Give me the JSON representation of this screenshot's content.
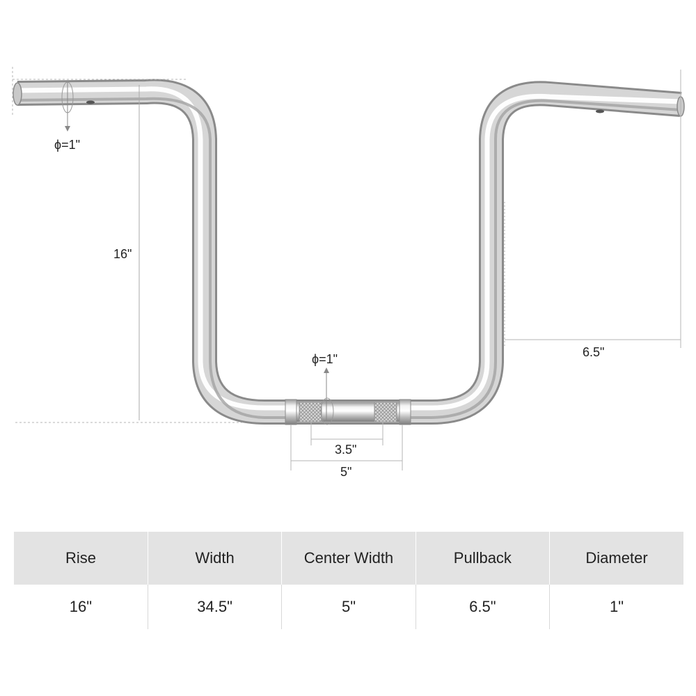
{
  "diagram": {
    "labels": {
      "grip_diameter": "ϕ=1\"",
      "center_diameter": "ϕ=1\"",
      "rise": "16\"",
      "pullback": "6.5\"",
      "knurl_width": "3.5\"",
      "center_width": "5\""
    },
    "colors": {
      "chrome_dark": "#8a8a8a",
      "chrome_mid": "#d4d4d4",
      "chrome_light": "#ffffff",
      "dimension_line": "#b5b5b5"
    }
  },
  "table": {
    "headers": [
      "Rise",
      "Width",
      "Center Width",
      "Pullback",
      "Diameter"
    ],
    "values": [
      "16\"",
      "34.5\"",
      "5\"",
      "6.5\"",
      "1\""
    ],
    "colors": {
      "header_bg": "#e3e3e3",
      "text": "#222222"
    }
  }
}
